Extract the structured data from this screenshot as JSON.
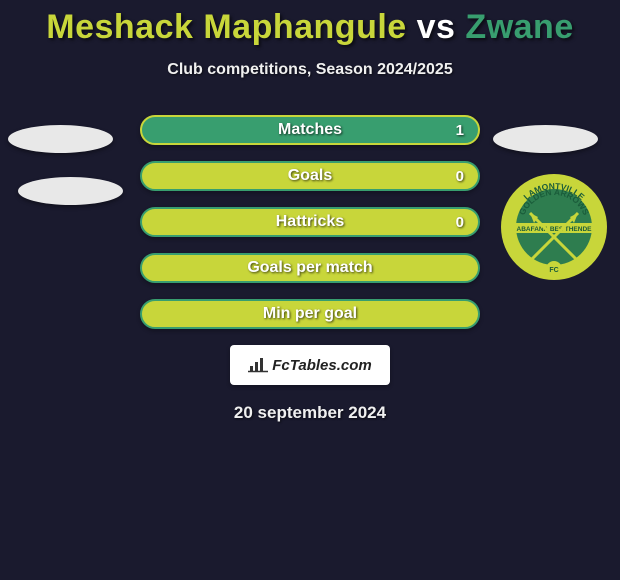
{
  "title": {
    "player1": "Meshack Maphangule",
    "vs": "vs",
    "player2": "Zwane",
    "player1_color": "#c8d63a",
    "vs_color": "#ffffff",
    "player2_color": "#389e6f"
  },
  "subtitle": "Club competitions, Season 2024/2025",
  "stats": [
    {
      "label": "Matches",
      "value": "1",
      "fill_color": "#389e6f",
      "border_color": "#c8d63a"
    },
    {
      "label": "Goals",
      "value": "0",
      "fill_color": "#c8d63a",
      "border_color": "#389e6f"
    },
    {
      "label": "Hattricks",
      "value": "0",
      "fill_color": "#c8d63a",
      "border_color": "#389e6f"
    },
    {
      "label": "Goals per match",
      "value": "",
      "fill_color": "#c8d63a",
      "border_color": "#389e6f"
    },
    {
      "label": "Min per goal",
      "value": "",
      "fill_color": "#c8d63a",
      "border_color": "#389e6f"
    }
  ],
  "club_logo": {
    "outer_color": "#c8d63a",
    "inner_color": "#2e7d4f",
    "top_text": "LAMONTVILLE",
    "mid_text": "GOLDEN ARROWS",
    "bottom_band_text": "ABAFANA BES'THENDE",
    "fc_text": "FC"
  },
  "footer_brand": "FcTables.com",
  "date": "20 september 2024",
  "background_color": "#1a1a2e"
}
